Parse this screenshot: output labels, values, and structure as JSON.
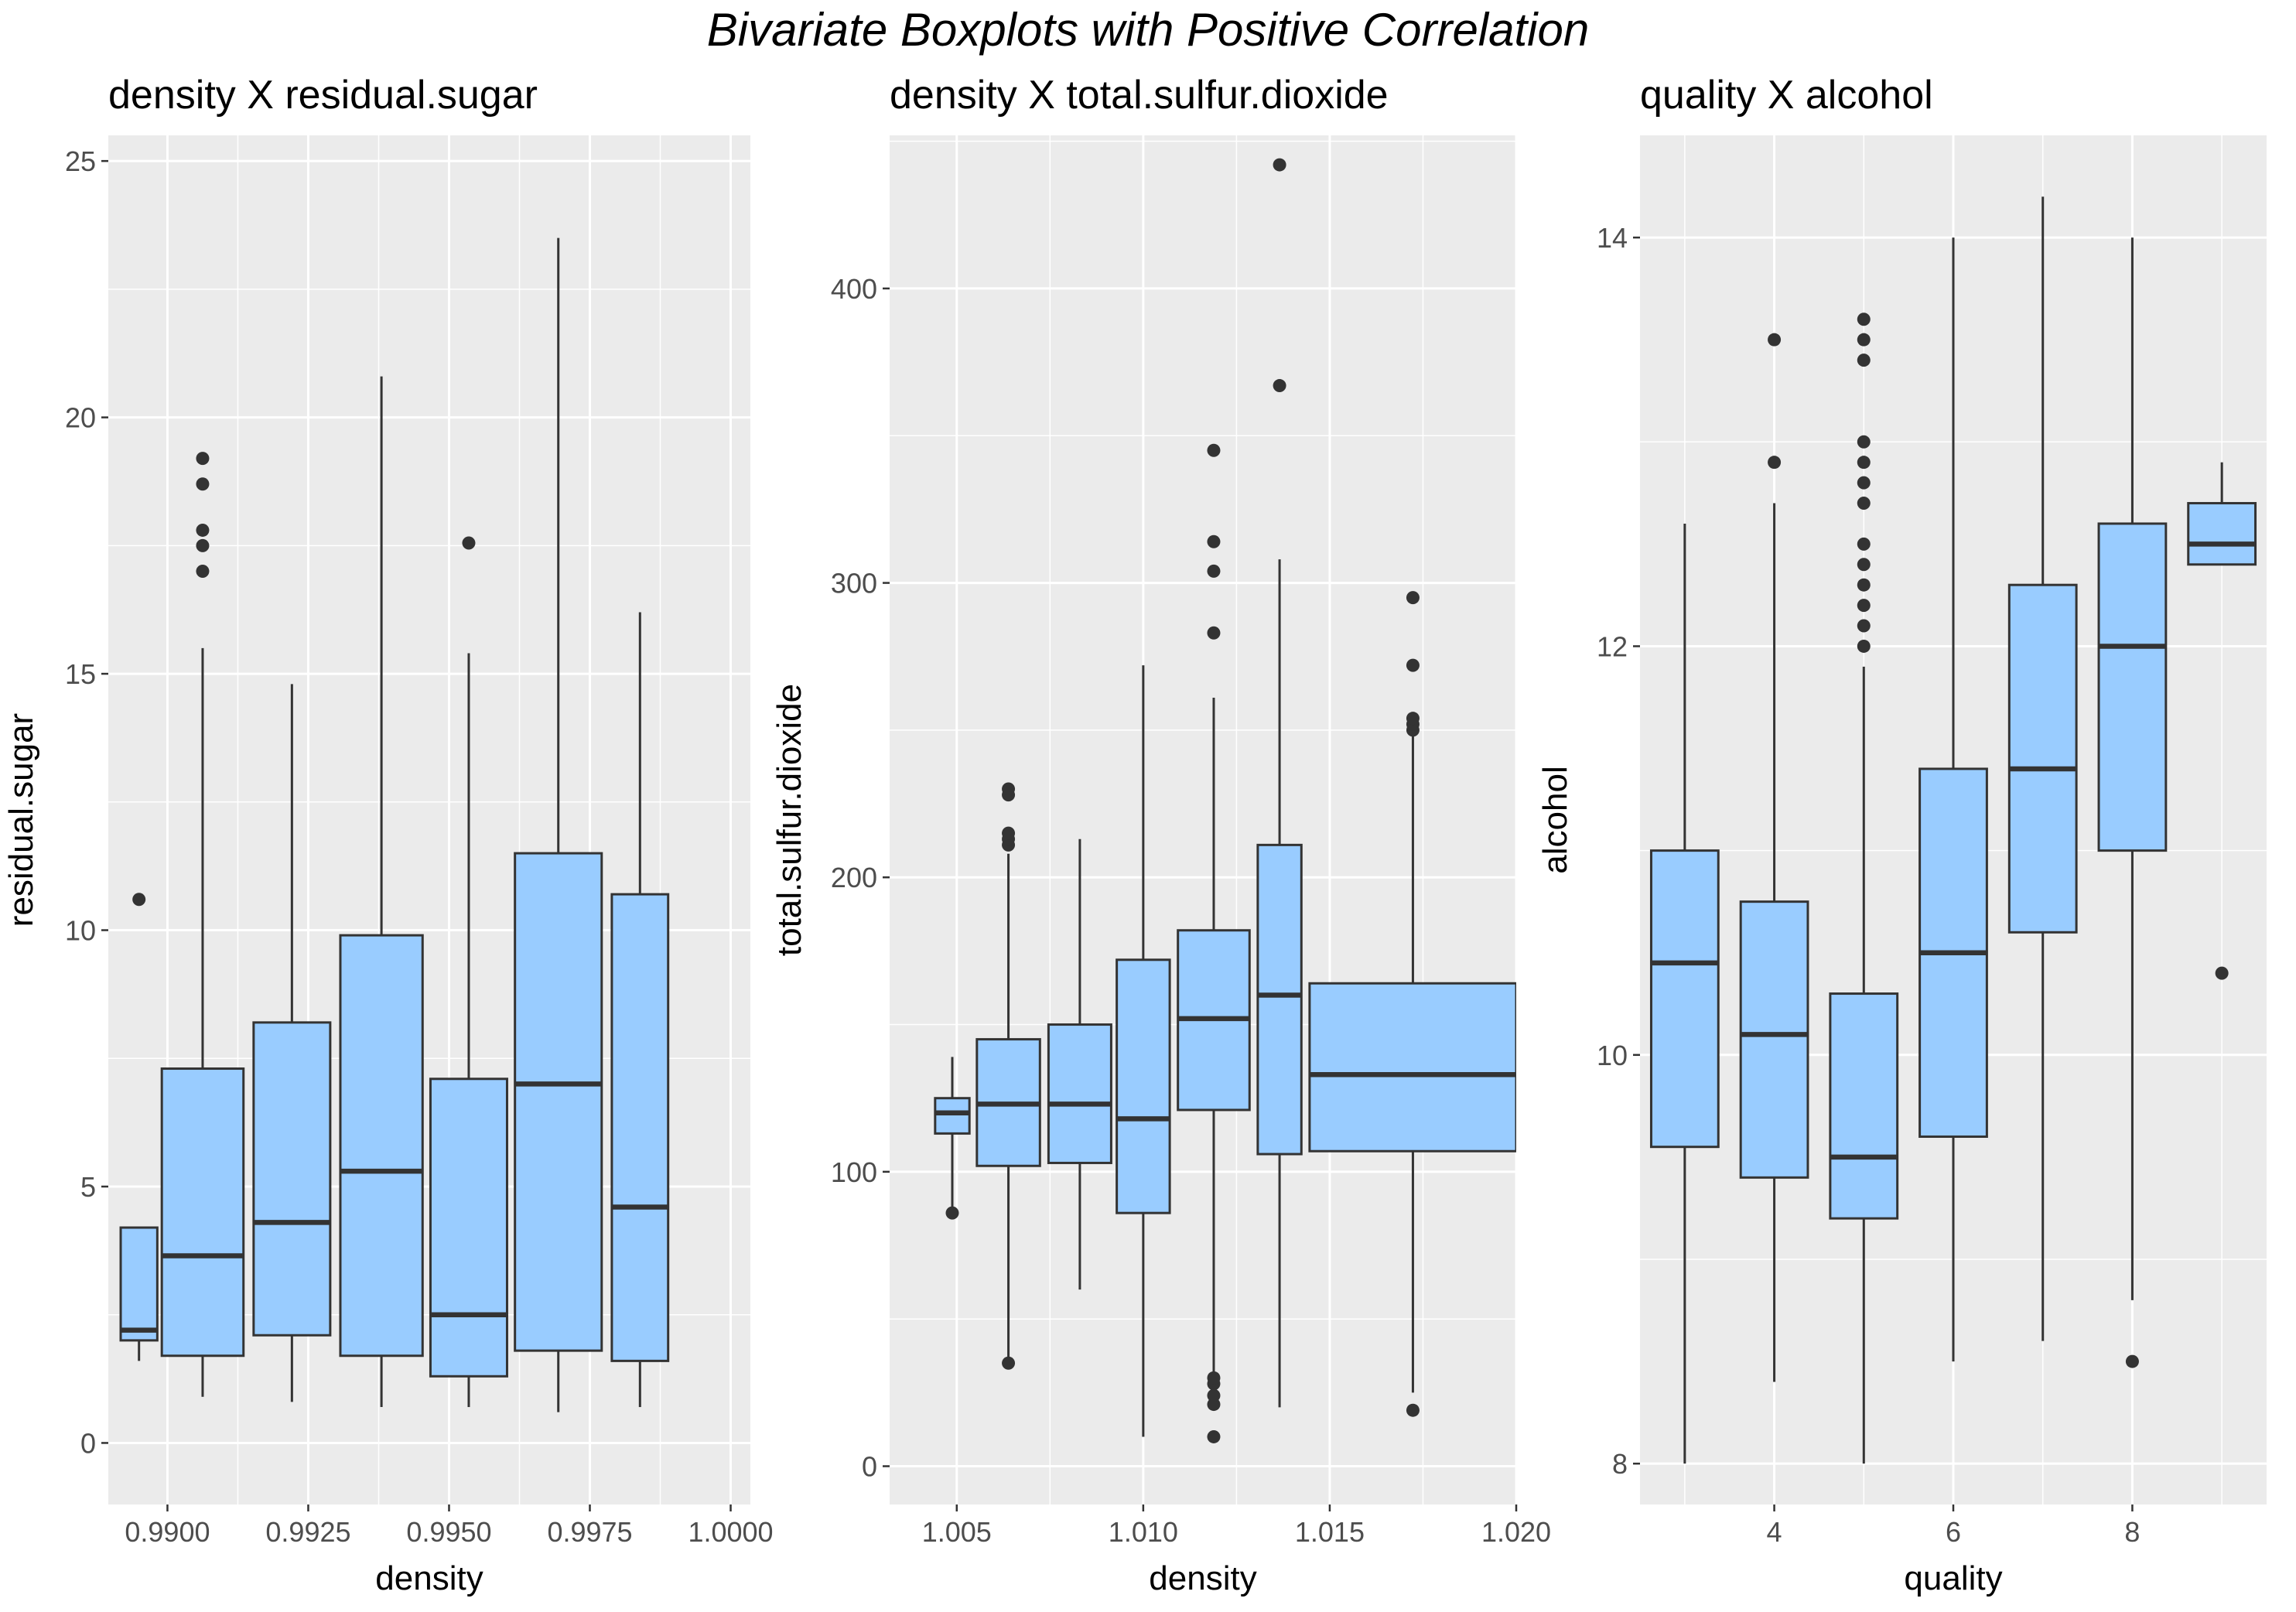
{
  "title": "Bivariate Boxplots with Positive Correlation",
  "colors": {
    "panel_bg": "#EBEBEB",
    "grid": "#FFFFFF",
    "box_fill": "#99CCFF",
    "stroke": "#333333"
  },
  "chart_data": [
    {
      "type": "boxplot",
      "title": "density X residual.sugar",
      "xlabel": "density",
      "ylabel": "residual.sugar",
      "xlim": [
        0.98895,
        1.00035
      ],
      "ylim": [
        -1.2,
        25.5
      ],
      "xticks": [
        "0.9900",
        "0.9925",
        "0.9950",
        "0.9975",
        "1.0000"
      ],
      "xtick_values": [
        0.99,
        0.9925,
        0.995,
        0.9975,
        1.0
      ],
      "yticks": [
        "0",
        "5",
        "10",
        "15",
        "20",
        "25"
      ],
      "ytick_values": [
        0,
        5,
        10,
        15,
        20,
        25
      ],
      "boxes": [
        {
          "x0": 0.98917,
          "x1": 0.98982,
          "low": 1.6,
          "q1": 2.0,
          "median": 2.2,
          "q3": 4.2,
          "high": 4.2,
          "outliers": [
            10.6
          ]
        },
        {
          "x0": 0.9899,
          "x1": 0.99135,
          "low": 0.9,
          "q1": 1.7,
          "median": 3.65,
          "q3": 7.3,
          "high": 15.5,
          "outliers": [
            17.0,
            17.5,
            17.8,
            18.7,
            19.2
          ]
        },
        {
          "x0": 0.99153,
          "x1": 0.99289,
          "low": 0.8,
          "q1": 2.1,
          "median": 4.3,
          "q3": 8.2,
          "high": 14.8,
          "outliers": []
        },
        {
          "x0": 0.99307,
          "x1": 0.99453,
          "low": 0.7,
          "q1": 1.7,
          "median": 5.3,
          "q3": 9.9,
          "high": 20.8,
          "outliers": []
        },
        {
          "x0": 0.99467,
          "x1": 0.99603,
          "low": 0.7,
          "q1": 1.3,
          "median": 2.5,
          "q3": 7.1,
          "high": 15.4,
          "outliers": [
            17.55
          ]
        },
        {
          "x0": 0.99617,
          "x1": 0.99771,
          "low": 0.6,
          "q1": 1.8,
          "median": 7.0,
          "q3": 11.5,
          "high": 23.5,
          "outliers": []
        },
        {
          "x0": 0.99789,
          "x1": 0.99889,
          "low": 0.7,
          "q1": 1.6,
          "median": 4.6,
          "q3": 10.7,
          "high": 16.2,
          "outliers": []
        }
      ]
    },
    {
      "type": "boxplot",
      "title": "density X total.sulfur.dioxide",
      "xlabel": "density",
      "ylabel": "total.sulfur.dioxide",
      "xlim": [
        1.0032,
        1.02
      ],
      "ylim": [
        -13,
        452
      ],
      "xticks": [
        "1.005",
        "1.010",
        "1.015",
        "1.020"
      ],
      "xtick_values": [
        1.005,
        1.01,
        1.015,
        1.02
      ],
      "yticks": [
        "0",
        "100",
        "200",
        "300",
        "400"
      ],
      "ytick_values": [
        0,
        100,
        200,
        300,
        400
      ],
      "boxes": [
        {
          "x0": 1.00442,
          "x1": 1.00534,
          "low": 85,
          "q1": 113,
          "median": 120,
          "q3": 125,
          "high": 139,
          "outliers": [
            86
          ]
        },
        {
          "x0": 1.00554,
          "x1": 1.00723,
          "low": 36,
          "q1": 102,
          "median": 123,
          "q3": 145,
          "high": 208,
          "outliers": [
            35,
            211,
            213,
            215,
            228,
            230
          ]
        },
        {
          "x0": 1.00746,
          "x1": 1.00914,
          "low": 60,
          "q1": 103,
          "median": 123,
          "q3": 150,
          "high": 213,
          "outliers": []
        },
        {
          "x0": 1.00929,
          "x1": 1.01071,
          "low": 10,
          "q1": 86,
          "median": 118,
          "q3": 172,
          "high": 272,
          "outliers": []
        },
        {
          "x0": 1.01093,
          "x1": 1.01285,
          "low": 30,
          "q1": 121,
          "median": 152,
          "q3": 182,
          "high": 261,
          "outliers": [
            10,
            21,
            24,
            28,
            30,
            283,
            304,
            314,
            345
          ]
        },
        {
          "x0": 1.01307,
          "x1": 1.01424,
          "low": 20,
          "q1": 106,
          "median": 160,
          "q3": 211,
          "high": 308,
          "outliers": [
            367,
            442
          ]
        },
        {
          "x0": 1.01446,
          "x1": 1.02,
          "low": 25,
          "q1": 107,
          "median": 133,
          "q3": 164,
          "high": 248,
          "outliers": [
            19,
            250,
            252,
            254,
            272,
            295
          ]
        }
      ]
    },
    {
      "type": "boxplot",
      "title": "quality X alcohol",
      "xlabel": "quality",
      "ylabel": "alcohol",
      "xlim": [
        2.5,
        9.5
      ],
      "ylim": [
        7.8,
        14.5
      ],
      "xticks": [
        "4",
        "6",
        "8"
      ],
      "xtick_values": [
        4,
        6,
        8
      ],
      "yticks": [
        "8",
        "10",
        "12",
        "14"
      ],
      "ytick_values": [
        8,
        10,
        12,
        14
      ],
      "categories": [
        3,
        4,
        5,
        6,
        7,
        8,
        9
      ],
      "boxes": [
        {
          "x": 3,
          "low": 8.0,
          "q1": 9.55,
          "median": 10.45,
          "q3": 11.0,
          "high": 12.6,
          "outliers": []
        },
        {
          "x": 4,
          "low": 8.4,
          "q1": 9.4,
          "median": 10.1,
          "q3": 10.75,
          "high": 12.7,
          "outliers": [
            12.9,
            13.5
          ]
        },
        {
          "x": 5,
          "low": 8.0,
          "q1": 9.2,
          "median": 9.5,
          "q3": 10.3,
          "high": 11.9,
          "outliers": [
            12.0,
            12.1,
            12.2,
            12.3,
            12.4,
            12.5,
            12.7,
            12.8,
            12.9,
            13.0,
            13.4,
            13.5,
            13.6
          ]
        },
        {
          "x": 6,
          "low": 8.5,
          "q1": 9.6,
          "median": 10.5,
          "q3": 11.4,
          "high": 14.0,
          "outliers": []
        },
        {
          "x": 7,
          "low": 8.6,
          "q1": 10.6,
          "median": 11.4,
          "q3": 12.3,
          "high": 14.2,
          "outliers": []
        },
        {
          "x": 8,
          "low": 8.8,
          "q1": 11.0,
          "median": 12.0,
          "q3": 12.6,
          "high": 14.0,
          "outliers": [
            8.5
          ]
        },
        {
          "x": 9,
          "low": 12.4,
          "q1": 12.4,
          "median": 12.5,
          "q3": 12.7,
          "high": 12.9,
          "outliers": [
            10.4
          ]
        }
      ]
    }
  ]
}
